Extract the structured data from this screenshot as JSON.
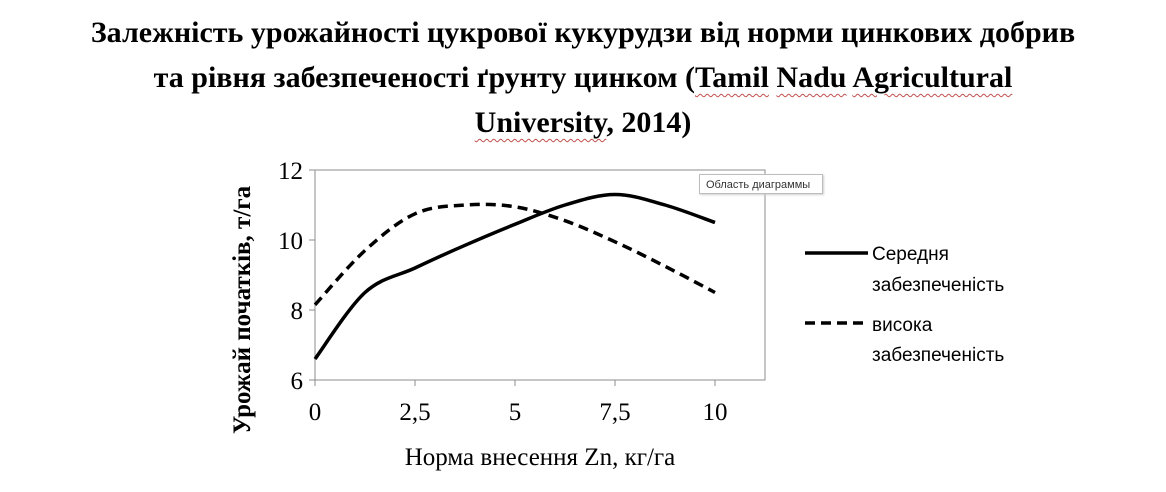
{
  "title": {
    "line1": "Залежність урожайності цукрової кукурудзи від норми цинкових добрив",
    "line2a": "та рівня забезпеченості ґрунту цинком (",
    "w_tamil": "Tamil",
    "w_nadu": "Nadu",
    "w_agri": "Agricultural",
    "line3a": "University",
    "line3b": ", 2014)"
  },
  "tooltip": "Область диаграммы",
  "chart_data": {
    "type": "line",
    "xlabel": "Норма внесення Zn, кг/га",
    "ylabel": "Урожай початків, т/га",
    "xlim": [
      0,
      11.25
    ],
    "ylim": [
      6,
      12
    ],
    "xticks": [
      "0",
      "2,5",
      "5",
      "7,5",
      "10"
    ],
    "yticks": [
      "6",
      "8",
      "10",
      "12"
    ],
    "grid": false,
    "legend_position": "right",
    "series": [
      {
        "name": "Середня забезпеченість",
        "style": "solid",
        "points": [
          [
            0,
            6.6
          ],
          [
            1.25,
            8.5
          ],
          [
            2.5,
            9.2
          ],
          [
            3.75,
            9.85
          ],
          [
            5,
            10.45
          ],
          [
            6.25,
            11.0
          ],
          [
            7.5,
            11.3
          ],
          [
            8.75,
            11.0
          ],
          [
            10,
            10.5
          ]
        ]
      },
      {
        "name": "висока забезпеченість",
        "style": "dashed",
        "points": [
          [
            0,
            8.15
          ],
          [
            1.25,
            9.7
          ],
          [
            2.5,
            10.75
          ],
          [
            3.75,
            11.0
          ],
          [
            5,
            10.95
          ],
          [
            6.25,
            10.55
          ],
          [
            7.5,
            9.95
          ],
          [
            8.75,
            9.25
          ],
          [
            10,
            8.5
          ]
        ]
      }
    ]
  },
  "legend": {
    "s1_line1": "Середня",
    "s1_line2": "забезпеченість",
    "s2_line1": "висока",
    "s2_line2": "забезпеченість"
  }
}
